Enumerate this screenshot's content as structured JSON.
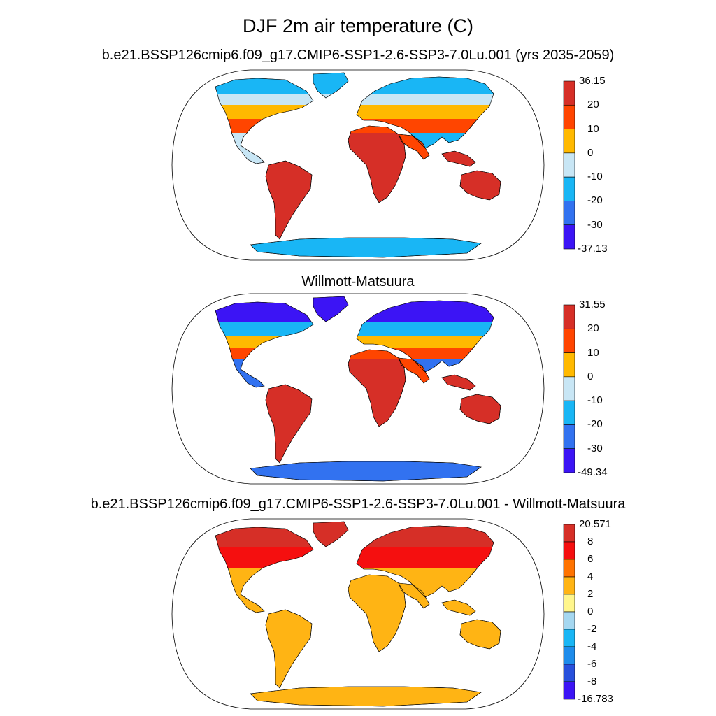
{
  "figure": {
    "title": "DJF 2m air temperature (C)",
    "panels": [
      {
        "title": "b.e21.BSSP126cmip6.f09_g17.CMIP6-SSP1-2.6-SSP3-7.0Lu.001 (yrs 2035-2059)",
        "colorbar": {
          "labels": [
            "36.15",
            "20",
            "10",
            "0",
            "-10",
            "-20",
            "-30",
            "-37.13"
          ],
          "colors": [
            "#d62f27",
            "#ff4500",
            "#ffb900",
            "#c8e6f5",
            "#19b6f5",
            "#3272f0",
            "#3c14f5"
          ]
        }
      },
      {
        "title": "Willmott-Matsuura",
        "colorbar": {
          "labels": [
            "31.55",
            "20",
            "10",
            "0",
            "-10",
            "-20",
            "-30",
            "-49.34"
          ],
          "colors": [
            "#d62f27",
            "#ff4500",
            "#ffb900",
            "#c8e6f5",
            "#19b6f5",
            "#3272f0",
            "#3c14f5"
          ]
        }
      },
      {
        "title": "b.e21.BSSP126cmip6.f09_g17.CMIP6-SSP1-2.6-SSP3-7.0Lu.001 - Willmott-Matsuura",
        "colorbar": {
          "labels": [
            "20.571",
            "8",
            "6",
            "4",
            "2",
            "0",
            "-2",
            "-4",
            "-6",
            "-8",
            "-16.783"
          ],
          "colors": [
            "#d62f27",
            "#f50f0f",
            "#ff7300",
            "#ffb414",
            "#fff68c",
            "#a5d7f0",
            "#19b6f5",
            "#1e8ceb",
            "#2850dc",
            "#3c14f5"
          ]
        }
      }
    ]
  }
}
